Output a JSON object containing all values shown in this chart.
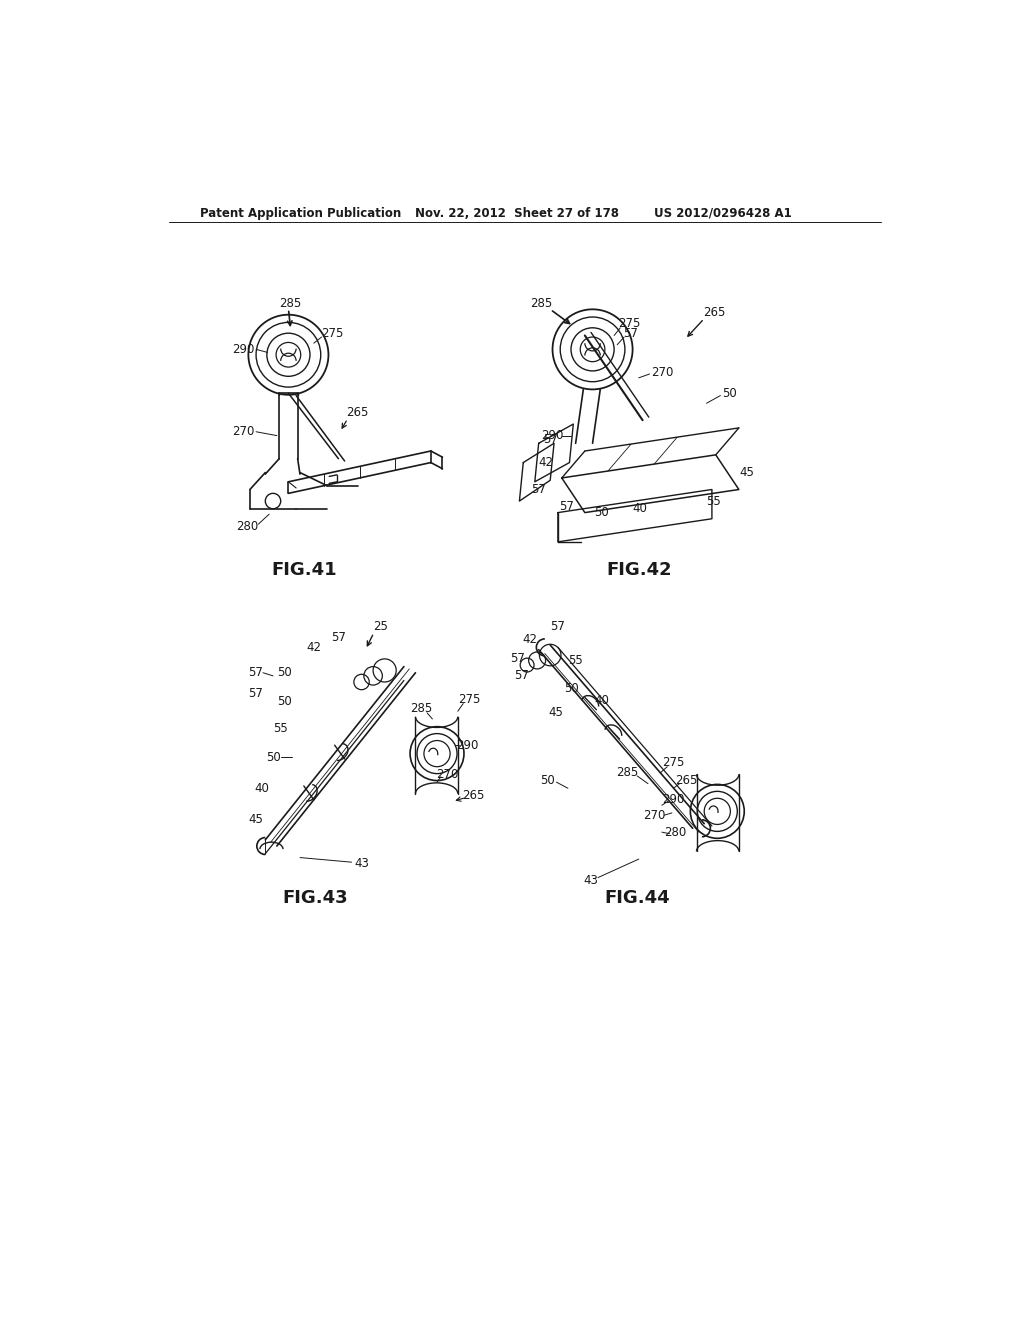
{
  "background_color": "#ffffff",
  "header_left": "Patent Application Publication",
  "header_middle": "Nov. 22, 2012  Sheet 27 of 178",
  "header_right": "US 2012/0296428 A1",
  "line_color": "#1a1a1a",
  "text_color": "#1a1a1a",
  "font_size_header": 8.5,
  "font_size_fig": 13,
  "font_size_ref": 8.5,
  "fig41_label": "FIG.41",
  "fig42_label": "FIG.42",
  "fig43_label": "FIG.43",
  "fig44_label": "FIG.44"
}
